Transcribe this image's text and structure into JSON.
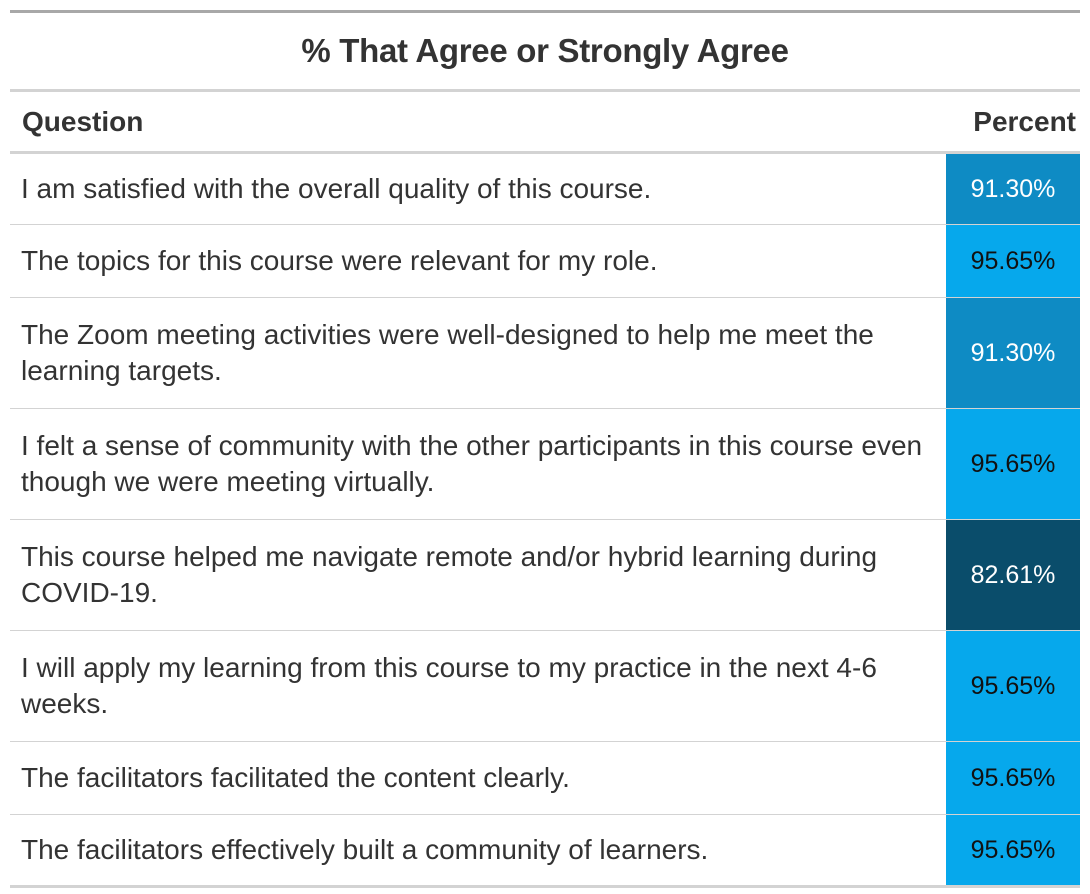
{
  "table": {
    "title": "% That Agree or Strongly Agree",
    "header": {
      "question": "Question",
      "percent": "Percent"
    },
    "rows": [
      {
        "question": "I am satisfied with the overall quality of this course.",
        "percent_label": "91.30%",
        "percent": 91.3,
        "color": "#0E8BC4",
        "text_color": "#FFFFFF"
      },
      {
        "question": "The topics for this course were relevant for my role.",
        "percent_label": "95.65%",
        "percent": 95.65,
        "color": "#06A8EC",
        "text_color": "#111111"
      },
      {
        "question": "The Zoom meeting activities were well-designed to help me meet the learning targets.",
        "percent_label": "91.30%",
        "percent": 91.3,
        "color": "#0E8BC4",
        "text_color": "#FFFFFF"
      },
      {
        "question": "I felt a sense of community with the other participants in this course even though we were meeting virtually.",
        "percent_label": "95.65%",
        "percent": 95.65,
        "color": "#06A8EC",
        "text_color": "#111111"
      },
      {
        "question": "This course helped me navigate remote and/or hybrid learning during COVID-19.",
        "percent_label": "82.61%",
        "percent": 82.61,
        "color": "#0A4D6B",
        "text_color": "#FFFFFF"
      },
      {
        "question": "I will apply my learning from this course to my practice in the next 4-6 weeks.",
        "percent_label": "95.65%",
        "percent": 95.65,
        "color": "#06A8EC",
        "text_color": "#111111"
      },
      {
        "question": "The facilitators facilitated the content clearly.",
        "percent_label": "95.65%",
        "percent": 95.65,
        "color": "#06A8EC",
        "text_color": "#111111"
      },
      {
        "question": "The facilitators effectively built a community of learners.",
        "percent_label": "95.65%",
        "percent": 95.65,
        "color": "#06A8EC",
        "text_color": "#111111"
      }
    ]
  },
  "chart_data": {
    "type": "table",
    "title": "% That Agree or Strongly Agree",
    "columns": [
      "Question",
      "Percent"
    ],
    "categories": [
      "I am satisfied with the overall quality of this course.",
      "The topics for this course were relevant for my role.",
      "The Zoom meeting activities were well-designed to help me meet the learning targets.",
      "I felt a sense of community with the other participants in this course even though we were meeting virtually.",
      "This course helped me navigate remote and/or hybrid learning during COVID-19.",
      "I will apply my learning from this course to my practice in the next 4-6 weeks.",
      "The facilitators facilitated the content clearly.",
      "The facilitators effectively built a community of learners."
    ],
    "values": [
      91.3,
      95.65,
      91.3,
      95.65,
      82.61,
      95.65,
      95.65,
      95.65
    ]
  }
}
